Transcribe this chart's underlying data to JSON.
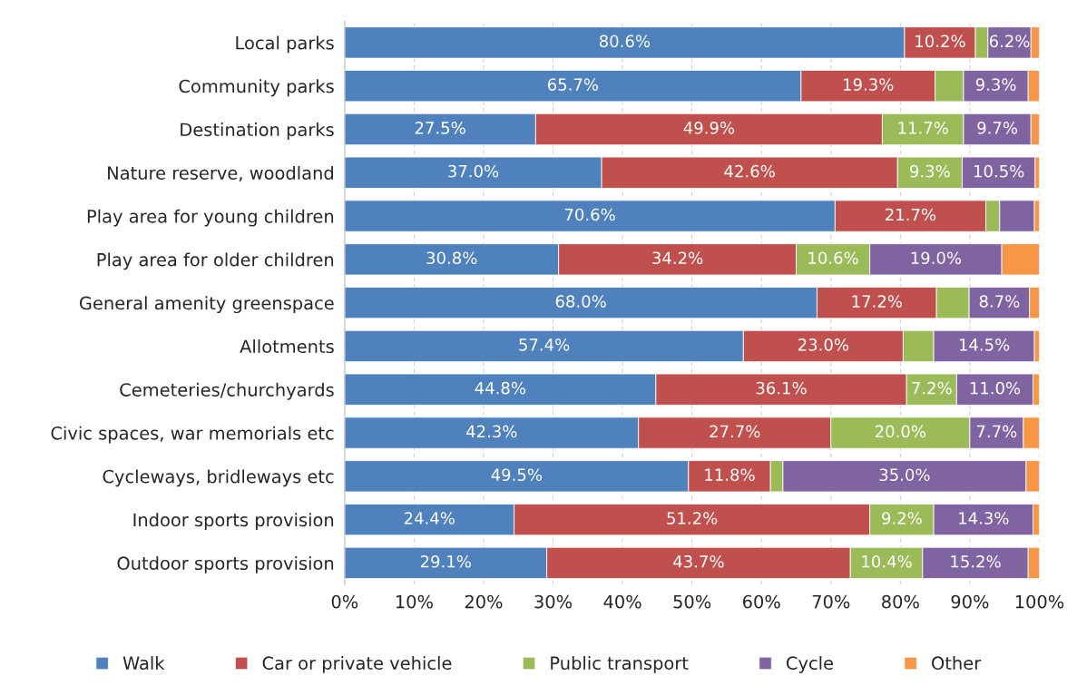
{
  "chart_data": {
    "type": "bar",
    "orientation": "horizontal",
    "stacked": true,
    "categories": [
      "Local parks",
      "Community parks",
      "Destination parks",
      "Nature reserve, woodland",
      "Play area for young children",
      "Play area for older children",
      "General amenity greenspace",
      "Allotments",
      "Cemeteries/churchyards",
      "Civic spaces, war memorials etc",
      "Cycleways, bridleways etc",
      "Indoor sports provision",
      "Outdoor sports provision"
    ],
    "series": [
      {
        "name": "Walk",
        "color": "#4f81bd",
        "values": [
          80.6,
          65.7,
          27.5,
          37.0,
          70.6,
          30.8,
          68.0,
          57.4,
          44.8,
          42.3,
          49.5,
          24.4,
          29.1
        ],
        "value_labels": [
          "80.6%",
          "65.7%",
          "27.5%",
          "37.0%",
          "70.6%",
          "30.8%",
          "68.0%",
          "57.4%",
          "44.8%",
          "42.3%",
          "49.5%",
          "24.4%",
          "29.1%"
        ]
      },
      {
        "name": "Car or private vehicle",
        "color": "#c0504d",
        "values": [
          10.2,
          19.3,
          49.9,
          42.6,
          21.7,
          34.2,
          17.2,
          23.0,
          36.1,
          27.7,
          11.8,
          51.2,
          43.7
        ],
        "value_labels": [
          "10.2%",
          "19.3%",
          "49.9%",
          "42.6%",
          "21.7%",
          "34.2%",
          "17.2%",
          "23.0%",
          "36.1%",
          "27.7%",
          "11.8%",
          "51.2%",
          "43.7%"
        ]
      },
      {
        "name": "Public transport",
        "color": "#9bbb59",
        "values": [
          1.8,
          4.1,
          11.7,
          9.3,
          2.0,
          10.6,
          4.7,
          4.4,
          7.2,
          20.0,
          1.8,
          9.2,
          10.4
        ],
        "value_labels": [
          null,
          null,
          "11.7%",
          "9.3%",
          null,
          "10.6%",
          null,
          null,
          "7.2%",
          "20.0%",
          null,
          "9.2%",
          "10.4%"
        ]
      },
      {
        "name": "Cycle",
        "color": "#8064a2",
        "values": [
          6.2,
          9.3,
          9.7,
          10.5,
          5.0,
          19.0,
          8.7,
          14.5,
          11.0,
          7.7,
          35.0,
          14.3,
          15.2
        ],
        "value_labels": [
          "6.2%",
          "9.3%",
          "9.7%",
          "10.5%",
          null,
          "19.0%",
          "8.7%",
          "14.5%",
          "11.0%",
          "7.7%",
          "35.0%",
          "14.3%",
          "15.2%"
        ]
      },
      {
        "name": "Other",
        "color": "#f79646",
        "values": [
          1.2,
          1.6,
          1.2,
          0.6,
          0.7,
          5.4,
          1.4,
          0.7,
          0.9,
          2.3,
          1.9,
          0.9,
          1.6
        ],
        "value_labels": [
          null,
          null,
          null,
          null,
          null,
          null,
          null,
          null,
          null,
          null,
          null,
          null,
          null
        ]
      }
    ],
    "xlim": [
      0,
      100
    ],
    "xticks": [
      {
        "value": 0,
        "label": "0%"
      },
      {
        "value": 10,
        "label": "10%"
      },
      {
        "value": 20,
        "label": "20%"
      },
      {
        "value": 30,
        "label": "30%"
      },
      {
        "value": 40,
        "label": "40%"
      },
      {
        "value": 50,
        "label": "50%"
      },
      {
        "value": 60,
        "label": "60%"
      },
      {
        "value": 70,
        "label": "70%"
      },
      {
        "value": 80,
        "label": "80%"
      },
      {
        "value": 90,
        "label": "90%"
      },
      {
        "value": 100,
        "label": "100%"
      }
    ],
    "grid": "x",
    "legend": "bottom"
  }
}
